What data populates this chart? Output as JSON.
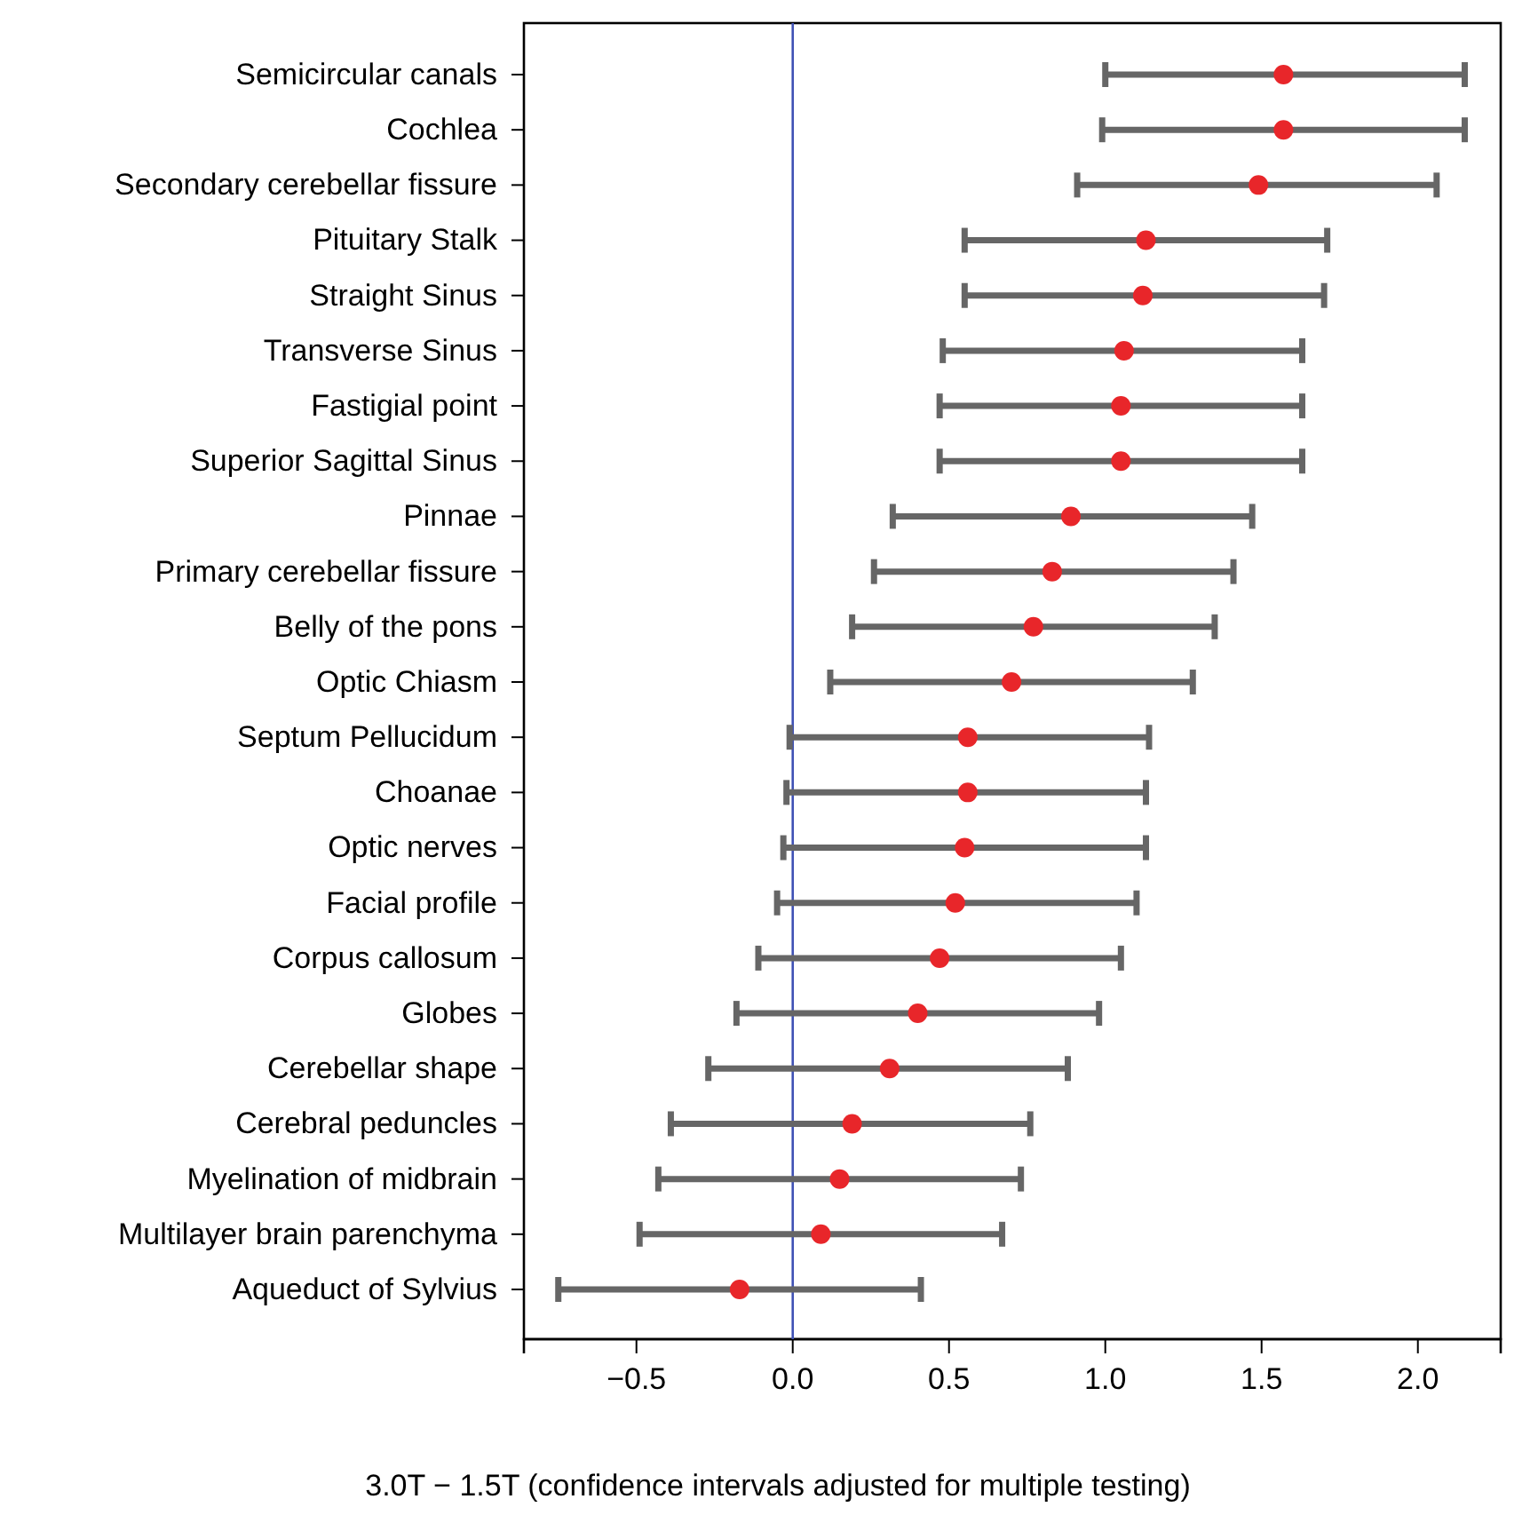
{
  "chart_data": {
    "type": "scatter",
    "orientation": "horizontal",
    "xlabel": "3.0T − 1.5T (confidence intervals adjusted for multiple testing)",
    "categories": [
      "Semicircular canals",
      "Cochlea",
      "Secondary cerebellar fissure",
      "Pituitary Stalk",
      "Straight Sinus",
      "Transverse Sinus",
      "Fastigial point",
      "Superior Sagittal Sinus",
      "Pinnae",
      "Primary cerebellar fissure",
      "Belly of the pons",
      "Optic Chiasm",
      "Septum Pellucidum",
      "Choanae",
      "Optic nerves",
      "Facial profile",
      "Corpus callosum",
      "Globes",
      "Cerebellar shape",
      "Cerebral peduncles",
      "Myelination of midbrain",
      "Multilayer brain parenchyma",
      "Aqueduct of Sylvius"
    ],
    "series": [
      {
        "color": "#e8262a",
        "values": [
          1.57,
          1.57,
          1.49,
          1.13,
          1.12,
          1.06,
          1.05,
          1.05,
          0.89,
          0.83,
          0.77,
          0.7,
          0.56,
          0.56,
          0.55,
          0.52,
          0.47,
          0.4,
          0.31,
          0.19,
          0.15,
          0.09,
          -0.17
        ],
        "errors": [
          [
            1.0,
            2.15
          ],
          [
            0.99,
            2.15
          ],
          [
            0.91,
            2.06
          ],
          [
            0.55,
            1.71
          ],
          [
            0.55,
            1.7
          ],
          [
            0.48,
            1.63
          ],
          [
            0.47,
            1.63
          ],
          [
            0.47,
            1.63
          ],
          [
            0.32,
            1.47
          ],
          [
            0.26,
            1.41
          ],
          [
            0.19,
            1.35
          ],
          [
            0.12,
            1.28
          ],
          [
            -0.01,
            1.14
          ],
          [
            -0.02,
            1.13
          ],
          [
            -0.03,
            1.13
          ],
          [
            -0.05,
            1.1
          ],
          [
            -0.11,
            1.05
          ],
          [
            -0.18,
            0.98
          ],
          [
            -0.27,
            0.88
          ],
          [
            -0.39,
            0.76
          ],
          [
            -0.43,
            0.73
          ],
          [
            -0.49,
            0.67
          ],
          [
            -0.75,
            0.41
          ]
        ]
      }
    ],
    "xlim": [
      -0.86,
      2.265
    ],
    "xticks": [
      {
        "value": -0.5,
        "label": "−0.5"
      },
      {
        "value": 0,
        "label": "0.0"
      },
      {
        "value": 0.5,
        "label": "0.5"
      },
      {
        "value": 1,
        "label": "1.0"
      },
      {
        "value": 1.5,
        "label": "1.5"
      },
      {
        "value": 2,
        "label": "2.0"
      }
    ],
    "ref_lines": [
      {
        "axis": "x",
        "value": 0,
        "color": "#3f51b5"
      }
    ],
    "marker": "circle",
    "grid": false
  }
}
